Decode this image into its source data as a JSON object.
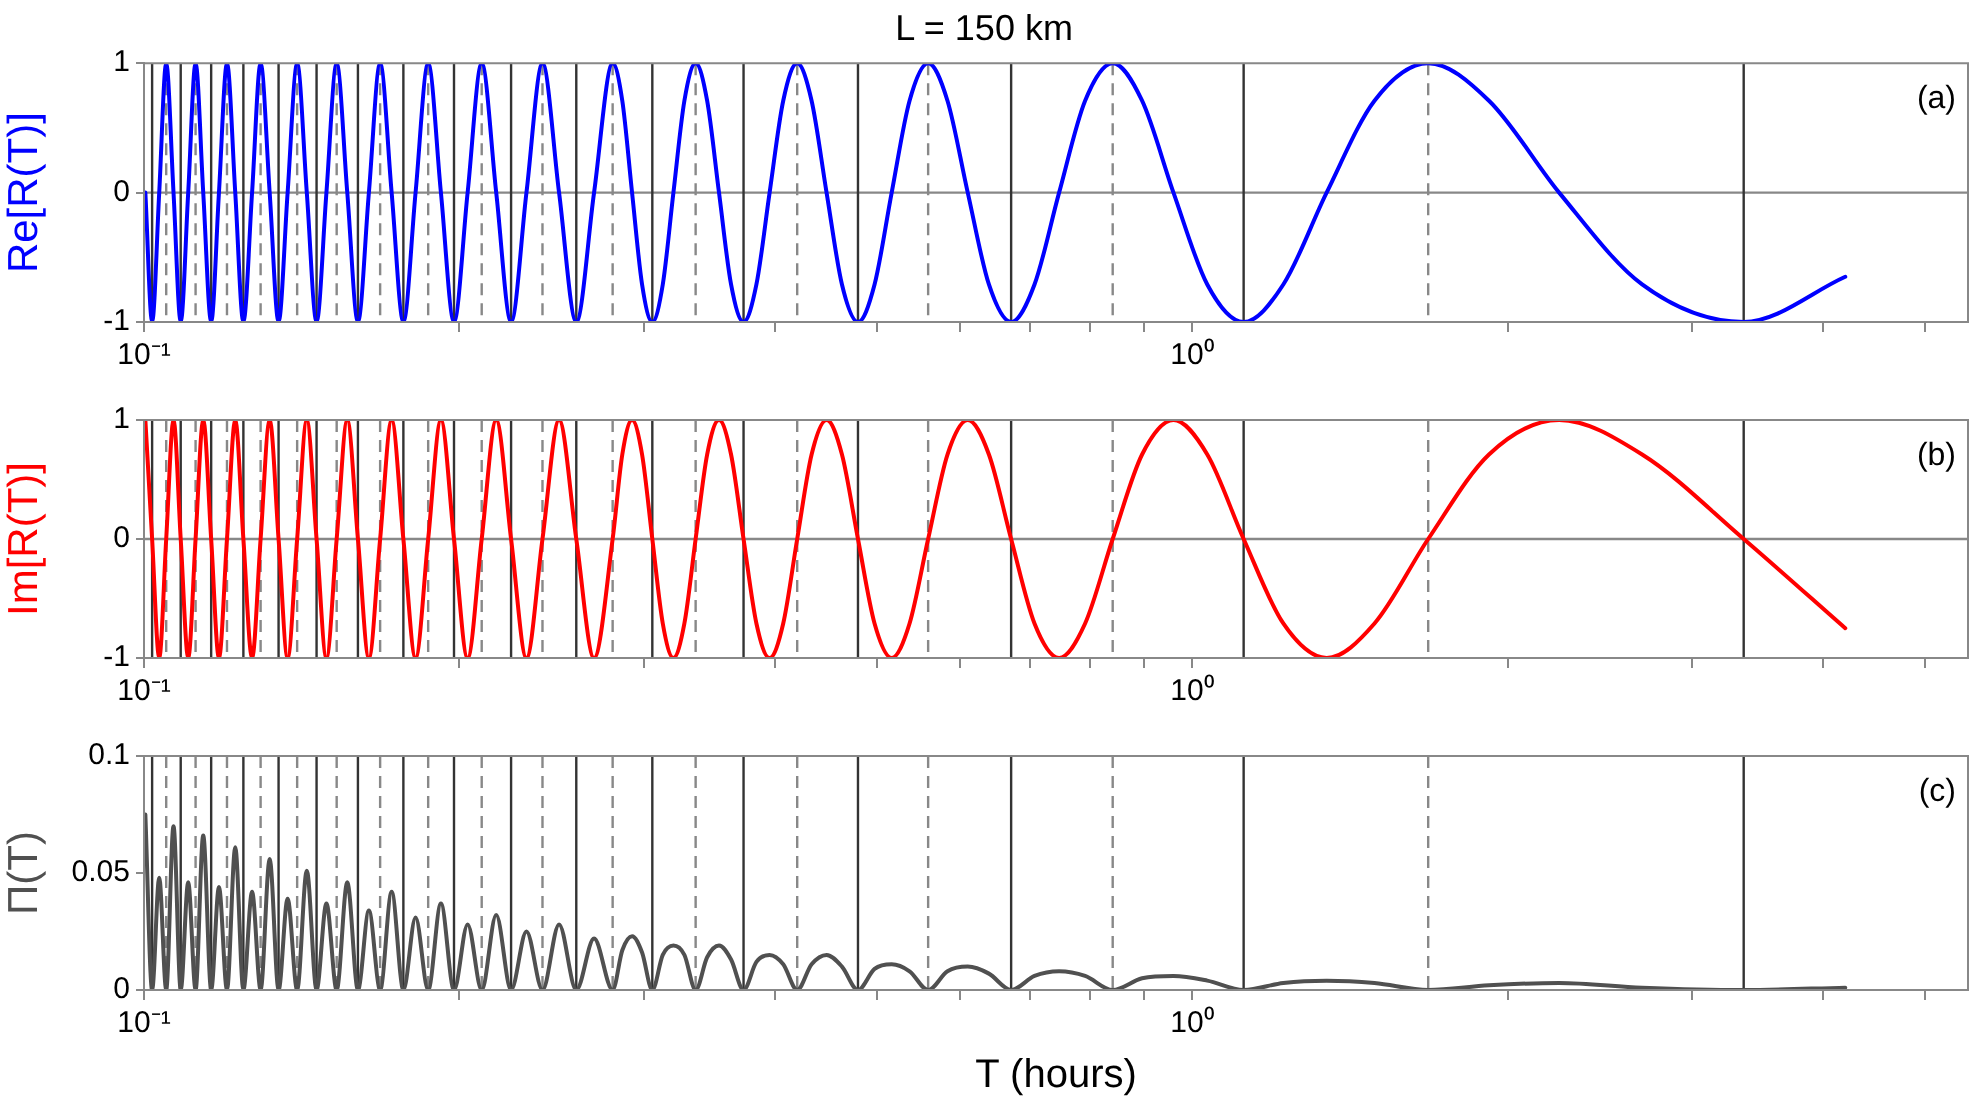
{
  "chart_data": [
    {
      "type": "line",
      "title": "L = 150 km",
      "ylabel": "Re[R(T)]",
      "log": "x",
      "marker": "none",
      "annotations": [
        "(a)"
      ],
      "xlim": [
        0.1,
        5.5
      ],
      "xticks": [
        {
          "value": 0.1,
          "label": "10⁻¹"
        },
        {
          "value": 0.2,
          "label": null
        },
        {
          "value": 0.3,
          "label": null
        },
        {
          "value": 0.4,
          "label": null
        },
        {
          "value": 0.5,
          "label": null
        },
        {
          "value": 0.6,
          "label": null
        },
        {
          "value": 0.7,
          "label": null
        },
        {
          "value": 0.8,
          "label": null
        },
        {
          "value": 0.9,
          "label": null
        },
        {
          "value": 1,
          "label": "10⁰"
        },
        {
          "value": 2,
          "label": null
        },
        {
          "value": 3,
          "label": null
        },
        {
          "value": 4,
          "label": null
        },
        {
          "value": 5,
          "label": null
        }
      ],
      "ylim": [
        -1,
        1
      ],
      "yticks": [
        -1,
        0,
        1
      ],
      "x": [
        0.1003,
        0.1018,
        0.1034,
        0.105,
        0.1067,
        0.1084,
        0.1102,
        0.112,
        0.1139,
        0.1159,
        0.1179,
        0.12,
        0.1222,
        0.1244,
        0.1268,
        0.1292,
        0.1318,
        0.1344,
        0.1371,
        0.14,
        0.143,
        0.1461,
        0.1493,
        0.1527,
        0.1563,
        0.16,
        0.1639,
        0.168,
        0.1723,
        0.1768,
        0.1816,
        0.1867,
        0.192,
        0.1976,
        0.2036,
        0.21,
        0.2168,
        0.224,
        0.2317,
        0.24,
        0.2489,
        0.2585,
        0.2688,
        0.28,
        0.286,
        0.2922,
        0.2987,
        0.3055,
        0.3126,
        0.32,
        0.3278,
        0.336,
        0.3446,
        0.3537,
        0.3632,
        0.3733,
        0.384,
        0.3953,
        0.4073,
        0.42,
        0.4335,
        0.448,
        0.4634,
        0.48,
        0.4978,
        0.5169,
        0.5376,
        0.56,
        0.5843,
        0.6109,
        0.64,
        0.672,
        0.7074,
        0.7467,
        0.7906,
        0.84,
        0.896,
        0.96,
        1.034,
        1.12,
        1.222,
        1.344,
        1.493,
        1.68,
        1.92,
        2.24,
        2.688,
        3.36,
        4.2
      ],
      "series": [
        {
          "color": "#0000ff",
          "values": [
            0,
            -1,
            0,
            1,
            0,
            -1,
            0,
            1,
            0,
            -1,
            0,
            1,
            0,
            -1,
            0,
            1,
            0,
            -1,
            0,
            1,
            0,
            -1,
            0,
            1,
            0,
            -1,
            0,
            1,
            0,
            -1,
            0,
            1,
            0,
            -1,
            0,
            1,
            0,
            -1,
            0,
            1,
            0,
            -1,
            0,
            1,
            0.71,
            0,
            -0.71,
            -1,
            -0.71,
            0,
            0.71,
            1,
            0.71,
            0,
            -0.71,
            -1,
            -0.71,
            0,
            0.71,
            1,
            0.71,
            0,
            -0.71,
            -1,
            -0.71,
            0,
            0.71,
            1,
            0.71,
            0,
            -0.71,
            -1,
            -0.71,
            0,
            0.71,
            1,
            0.71,
            0,
            -0.71,
            -1,
            -0.71,
            0,
            0.71,
            1,
            0.71,
            0,
            -0.71,
            -1,
            -0.65
          ]
        }
      ],
      "ref_lines": [
        {
          "axis": "y",
          "value": 0,
          "color": "#888888",
          "line_style": "solid"
        },
        {
          "axis": "x",
          "value": 0.1018,
          "color": "#333333",
          "line_style": "solid"
        },
        {
          "axis": "x",
          "value": 0.1084,
          "color": "#333333",
          "line_style": "solid"
        },
        {
          "axis": "x",
          "value": 0.1159,
          "color": "#333333",
          "line_style": "solid"
        },
        {
          "axis": "x",
          "value": 0.1244,
          "color": "#333333",
          "line_style": "solid"
        },
        {
          "axis": "x",
          "value": 0.1344,
          "color": "#333333",
          "line_style": "solid"
        },
        {
          "axis": "x",
          "value": 0.1461,
          "color": "#333333",
          "line_style": "solid"
        },
        {
          "axis": "x",
          "value": 0.16,
          "color": "#333333",
          "line_style": "solid"
        },
        {
          "axis": "x",
          "value": 0.1768,
          "color": "#333333",
          "line_style": "solid"
        },
        {
          "axis": "x",
          "value": 0.1976,
          "color": "#333333",
          "line_style": "solid"
        },
        {
          "axis": "x",
          "value": 0.224,
          "color": "#333333",
          "line_style": "solid"
        },
        {
          "axis": "x",
          "value": 0.2585,
          "color": "#333333",
          "line_style": "solid"
        },
        {
          "axis": "x",
          "value": 0.3055,
          "color": "#333333",
          "line_style": "solid"
        },
        {
          "axis": "x",
          "value": 0.3733,
          "color": "#333333",
          "line_style": "solid"
        },
        {
          "axis": "x",
          "value": 0.48,
          "color": "#333333",
          "line_style": "solid"
        },
        {
          "axis": "x",
          "value": 0.672,
          "color": "#333333",
          "line_style": "solid"
        },
        {
          "axis": "x",
          "value": 1.12,
          "color": "#333333",
          "line_style": "solid"
        },
        {
          "axis": "x",
          "value": 3.36,
          "color": "#333333",
          "line_style": "solid"
        },
        {
          "axis": "x",
          "value": 0.105,
          "color": "#888888",
          "line_style": "dashed"
        },
        {
          "axis": "x",
          "value": 0.112,
          "color": "#888888",
          "line_style": "dashed"
        },
        {
          "axis": "x",
          "value": 0.12,
          "color": "#888888",
          "line_style": "dashed"
        },
        {
          "axis": "x",
          "value": 0.1292,
          "color": "#888888",
          "line_style": "dashed"
        },
        {
          "axis": "x",
          "value": 0.14,
          "color": "#888888",
          "line_style": "dashed"
        },
        {
          "axis": "x",
          "value": 0.1527,
          "color": "#888888",
          "line_style": "dashed"
        },
        {
          "axis": "x",
          "value": 0.168,
          "color": "#888888",
          "line_style": "dashed"
        },
        {
          "axis": "x",
          "value": 0.1867,
          "color": "#888888",
          "line_style": "dashed"
        },
        {
          "axis": "x",
          "value": 0.21,
          "color": "#888888",
          "line_style": "dashed"
        },
        {
          "axis": "x",
          "value": 0.24,
          "color": "#888888",
          "line_style": "dashed"
        },
        {
          "axis": "x",
          "value": 0.28,
          "color": "#888888",
          "line_style": "dashed"
        },
        {
          "axis": "x",
          "value": 0.336,
          "color": "#888888",
          "line_style": "dashed"
        },
        {
          "axis": "x",
          "value": 0.42,
          "color": "#888888",
          "line_style": "dashed"
        },
        {
          "axis": "x",
          "value": 0.56,
          "color": "#888888",
          "line_style": "dashed"
        },
        {
          "axis": "x",
          "value": 0.84,
          "color": "#888888",
          "line_style": "dashed"
        },
        {
          "axis": "x",
          "value": 1.68,
          "color": "#888888",
          "line_style": "dashed"
        }
      ]
    },
    {
      "type": "line",
      "ylabel": "Im[R(T)]",
      "log": "x",
      "marker": "none",
      "annotations": [
        "(b)"
      ],
      "xlim": [
        0.1,
        5.5
      ],
      "xticks": [
        {
          "value": 0.1,
          "label": "10⁻¹"
        },
        {
          "value": 0.2,
          "label": null
        },
        {
          "value": 0.3,
          "label": null
        },
        {
          "value": 0.4,
          "label": null
        },
        {
          "value": 0.5,
          "label": null
        },
        {
          "value": 0.6,
          "label": null
        },
        {
          "value": 0.7,
          "label": null
        },
        {
          "value": 0.8,
          "label": null
        },
        {
          "value": 0.9,
          "label": null
        },
        {
          "value": 1,
          "label": "10⁰"
        },
        {
          "value": 2,
          "label": null
        },
        {
          "value": 3,
          "label": null
        },
        {
          "value": 4,
          "label": null
        },
        {
          "value": 5,
          "label": null
        }
      ],
      "ylim": [
        -1,
        1
      ],
      "yticks": [
        -1,
        0,
        1
      ],
      "x": [
        0.1003,
        0.1018,
        0.1034,
        0.105,
        0.1067,
        0.1084,
        0.1102,
        0.112,
        0.1139,
        0.1159,
        0.1179,
        0.12,
        0.1222,
        0.1244,
        0.1268,
        0.1292,
        0.1318,
        0.1344,
        0.1371,
        0.14,
        0.143,
        0.1461,
        0.1493,
        0.1527,
        0.1563,
        0.16,
        0.1639,
        0.168,
        0.1723,
        0.1768,
        0.1816,
        0.1867,
        0.192,
        0.1976,
        0.2036,
        0.21,
        0.2168,
        0.224,
        0.2317,
        0.24,
        0.2489,
        0.2585,
        0.2688,
        0.28,
        0.286,
        0.2922,
        0.2987,
        0.3055,
        0.3126,
        0.32,
        0.3278,
        0.336,
        0.3446,
        0.3537,
        0.3632,
        0.3733,
        0.384,
        0.3953,
        0.4073,
        0.42,
        0.4335,
        0.448,
        0.4634,
        0.48,
        0.4978,
        0.5169,
        0.5376,
        0.56,
        0.5843,
        0.6109,
        0.64,
        0.672,
        0.7074,
        0.7467,
        0.7906,
        0.84,
        0.896,
        0.96,
        1.034,
        1.12,
        1.222,
        1.344,
        1.493,
        1.68,
        1.92,
        2.24,
        2.688,
        3.36,
        4.2
      ],
      "series": [
        {
          "color": "#ff0000",
          "values": [
            1,
            0,
            -1,
            0,
            1,
            0,
            -1,
            0,
            1,
            0,
            -1,
            0,
            1,
            0,
            -1,
            0,
            1,
            0,
            -1,
            0,
            1,
            0,
            -1,
            0,
            1,
            0,
            -1,
            0,
            1,
            0,
            -1,
            0,
            1,
            0,
            -1,
            0,
            1,
            0,
            -1,
            0,
            1,
            0,
            -1,
            0,
            0.71,
            1,
            0.71,
            0,
            -0.71,
            -1,
            -0.71,
            0,
            0.71,
            1,
            0.71,
            0,
            -0.71,
            -1,
            -0.71,
            0,
            0.71,
            1,
            0.71,
            0,
            -0.71,
            -1,
            -0.71,
            0,
            0.71,
            1,
            0.71,
            0,
            -0.71,
            -1,
            -0.71,
            0,
            0.71,
            1,
            0.71,
            0,
            -0.71,
            -1,
            -0.71,
            0,
            0.71,
            1,
            0.71,
            0,
            -0.75
          ]
        }
      ],
      "ref_lines": [
        {
          "axis": "y",
          "value": 0,
          "color": "#888888",
          "line_style": "solid"
        },
        {
          "axis": "x",
          "value": 0.1018,
          "color": "#333333",
          "line_style": "solid"
        },
        {
          "axis": "x",
          "value": 0.1084,
          "color": "#333333",
          "line_style": "solid"
        },
        {
          "axis": "x",
          "value": 0.1159,
          "color": "#333333",
          "line_style": "solid"
        },
        {
          "axis": "x",
          "value": 0.1244,
          "color": "#333333",
          "line_style": "solid"
        },
        {
          "axis": "x",
          "value": 0.1344,
          "color": "#333333",
          "line_style": "solid"
        },
        {
          "axis": "x",
          "value": 0.1461,
          "color": "#333333",
          "line_style": "solid"
        },
        {
          "axis": "x",
          "value": 0.16,
          "color": "#333333",
          "line_style": "solid"
        },
        {
          "axis": "x",
          "value": 0.1768,
          "color": "#333333",
          "line_style": "solid"
        },
        {
          "axis": "x",
          "value": 0.1976,
          "color": "#333333",
          "line_style": "solid"
        },
        {
          "axis": "x",
          "value": 0.224,
          "color": "#333333",
          "line_style": "solid"
        },
        {
          "axis": "x",
          "value": 0.2585,
          "color": "#333333",
          "line_style": "solid"
        },
        {
          "axis": "x",
          "value": 0.3055,
          "color": "#333333",
          "line_style": "solid"
        },
        {
          "axis": "x",
          "value": 0.3733,
          "color": "#333333",
          "line_style": "solid"
        },
        {
          "axis": "x",
          "value": 0.48,
          "color": "#333333",
          "line_style": "solid"
        },
        {
          "axis": "x",
          "value": 0.672,
          "color": "#333333",
          "line_style": "solid"
        },
        {
          "axis": "x",
          "value": 1.12,
          "color": "#333333",
          "line_style": "solid"
        },
        {
          "axis": "x",
          "value": 3.36,
          "color": "#333333",
          "line_style": "solid"
        },
        {
          "axis": "x",
          "value": 0.105,
          "color": "#888888",
          "line_style": "dashed"
        },
        {
          "axis": "x",
          "value": 0.112,
          "color": "#888888",
          "line_style": "dashed"
        },
        {
          "axis": "x",
          "value": 0.12,
          "color": "#888888",
          "line_style": "dashed"
        },
        {
          "axis": "x",
          "value": 0.1292,
          "color": "#888888",
          "line_style": "dashed"
        },
        {
          "axis": "x",
          "value": 0.14,
          "color": "#888888",
          "line_style": "dashed"
        },
        {
          "axis": "x",
          "value": 0.1527,
          "color": "#888888",
          "line_style": "dashed"
        },
        {
          "axis": "x",
          "value": 0.168,
          "color": "#888888",
          "line_style": "dashed"
        },
        {
          "axis": "x",
          "value": 0.1867,
          "color": "#888888",
          "line_style": "dashed"
        },
        {
          "axis": "x",
          "value": 0.21,
          "color": "#888888",
          "line_style": "dashed"
        },
        {
          "axis": "x",
          "value": 0.24,
          "color": "#888888",
          "line_style": "dashed"
        },
        {
          "axis": "x",
          "value": 0.28,
          "color": "#888888",
          "line_style": "dashed"
        },
        {
          "axis": "x",
          "value": 0.336,
          "color": "#888888",
          "line_style": "dashed"
        },
        {
          "axis": "x",
          "value": 0.42,
          "color": "#888888",
          "line_style": "dashed"
        },
        {
          "axis": "x",
          "value": 0.56,
          "color": "#888888",
          "line_style": "dashed"
        },
        {
          "axis": "x",
          "value": 0.84,
          "color": "#888888",
          "line_style": "dashed"
        },
        {
          "axis": "x",
          "value": 1.68,
          "color": "#888888",
          "line_style": "dashed"
        }
      ]
    },
    {
      "type": "line",
      "ylabel": "Π(T)",
      "xlabel": "T (hours)",
      "log": "x",
      "marker": "none",
      "annotations": [
        "(c)"
      ],
      "xlim": [
        0.1,
        5.5
      ],
      "xticks": [
        {
          "value": 0.1,
          "label": "10⁻¹"
        },
        {
          "value": 0.2,
          "label": null
        },
        {
          "value": 0.3,
          "label": null
        },
        {
          "value": 0.4,
          "label": null
        },
        {
          "value": 0.5,
          "label": null
        },
        {
          "value": 0.6,
          "label": null
        },
        {
          "value": 0.7,
          "label": null
        },
        {
          "value": 0.8,
          "label": null
        },
        {
          "value": 0.9,
          "label": null
        },
        {
          "value": 1,
          "label": "10⁰"
        },
        {
          "value": 2,
          "label": null
        },
        {
          "value": 3,
          "label": null
        },
        {
          "value": 4,
          "label": null
        },
        {
          "value": 5,
          "label": null
        }
      ],
      "ylim": [
        0,
        0.1
      ],
      "yticks": [
        0,
        0.05,
        0.1
      ],
      "x": [
        0.1003,
        0.1018,
        0.1034,
        0.105,
        0.1067,
        0.1084,
        0.1102,
        0.112,
        0.1139,
        0.1159,
        0.1179,
        0.12,
        0.1222,
        0.1244,
        0.1268,
        0.1292,
        0.1318,
        0.1344,
        0.1371,
        0.14,
        0.143,
        0.1461,
        0.1493,
        0.1527,
        0.1563,
        0.16,
        0.1639,
        0.168,
        0.1723,
        0.1768,
        0.1816,
        0.1867,
        0.192,
        0.1976,
        0.2036,
        0.21,
        0.2168,
        0.224,
        0.2317,
        0.24,
        0.2489,
        0.2585,
        0.2688,
        0.28,
        0.286,
        0.2922,
        0.2987,
        0.3055,
        0.3126,
        0.32,
        0.3278,
        0.336,
        0.3446,
        0.3537,
        0.3632,
        0.3733,
        0.384,
        0.3953,
        0.4073,
        0.42,
        0.4335,
        0.448,
        0.4634,
        0.48,
        0.4978,
        0.5169,
        0.5376,
        0.56,
        0.5843,
        0.6109,
        0.64,
        0.672,
        0.7074,
        0.7467,
        0.7906,
        0.84,
        0.896,
        0.96,
        1.034,
        1.12,
        1.222,
        1.344,
        1.493,
        1.68,
        1.92,
        2.24,
        2.688,
        3.36,
        4.2
      ],
      "series": [
        {
          "color": "#505050",
          "values": [
            0.075,
            0,
            0.048,
            0,
            0.07,
            0,
            0.046,
            0,
            0.066,
            0,
            0.044,
            0,
            0.061,
            0,
            0.042,
            0,
            0.056,
            0,
            0.039,
            0,
            0.051,
            0,
            0.037,
            0,
            0.046,
            0,
            0.034,
            0,
            0.042,
            0,
            0.031,
            0,
            0.037,
            0,
            0.028,
            0,
            0.032,
            0,
            0.025,
            0,
            0.028,
            0,
            0.022,
            0,
            0.017,
            0.023,
            0.016,
            0,
            0.015,
            0.019,
            0.015,
            0,
            0.014,
            0.019,
            0.013,
            0,
            0.012,
            0.015,
            0.011,
            0,
            0.011,
            0.015,
            0.01,
            0,
            0.009,
            0.011,
            0.008,
            0,
            0.008,
            0.01,
            0.007,
            0,
            0.006,
            0.008,
            0.006,
            0,
            0.005,
            0.006,
            0.004,
            0,
            0.003,
            0.004,
            0.003,
            0,
            0.002,
            0.003,
            0.001,
            0,
            0.001
          ]
        }
      ],
      "ref_lines": [
        {
          "axis": "x",
          "value": 0.1018,
          "color": "#333333",
          "line_style": "solid"
        },
        {
          "axis": "x",
          "value": 0.1084,
          "color": "#333333",
          "line_style": "solid"
        },
        {
          "axis": "x",
          "value": 0.1159,
          "color": "#333333",
          "line_style": "solid"
        },
        {
          "axis": "x",
          "value": 0.1244,
          "color": "#333333",
          "line_style": "solid"
        },
        {
          "axis": "x",
          "value": 0.1344,
          "color": "#333333",
          "line_style": "solid"
        },
        {
          "axis": "x",
          "value": 0.1461,
          "color": "#333333",
          "line_style": "solid"
        },
        {
          "axis": "x",
          "value": 0.16,
          "color": "#333333",
          "line_style": "solid"
        },
        {
          "axis": "x",
          "value": 0.1768,
          "color": "#333333",
          "line_style": "solid"
        },
        {
          "axis": "x",
          "value": 0.1976,
          "color": "#333333",
          "line_style": "solid"
        },
        {
          "axis": "x",
          "value": 0.224,
          "color": "#333333",
          "line_style": "solid"
        },
        {
          "axis": "x",
          "value": 0.2585,
          "color": "#333333",
          "line_style": "solid"
        },
        {
          "axis": "x",
          "value": 0.3055,
          "color": "#333333",
          "line_style": "solid"
        },
        {
          "axis": "x",
          "value": 0.3733,
          "color": "#333333",
          "line_style": "solid"
        },
        {
          "axis": "x",
          "value": 0.48,
          "color": "#333333",
          "line_style": "solid"
        },
        {
          "axis": "x",
          "value": 0.672,
          "color": "#333333",
          "line_style": "solid"
        },
        {
          "axis": "x",
          "value": 1.12,
          "color": "#333333",
          "line_style": "solid"
        },
        {
          "axis": "x",
          "value": 3.36,
          "color": "#333333",
          "line_style": "solid"
        },
        {
          "axis": "x",
          "value": 0.105,
          "color": "#888888",
          "line_style": "dashed"
        },
        {
          "axis": "x",
          "value": 0.112,
          "color": "#888888",
          "line_style": "dashed"
        },
        {
          "axis": "x",
          "value": 0.12,
          "color": "#888888",
          "line_style": "dashed"
        },
        {
          "axis": "x",
          "value": 0.1292,
          "color": "#888888",
          "line_style": "dashed"
        },
        {
          "axis": "x",
          "value": 0.14,
          "color": "#888888",
          "line_style": "dashed"
        },
        {
          "axis": "x",
          "value": 0.1527,
          "color": "#888888",
          "line_style": "dashed"
        },
        {
          "axis": "x",
          "value": 0.168,
          "color": "#888888",
          "line_style": "dashed"
        },
        {
          "axis": "x",
          "value": 0.1867,
          "color": "#888888",
          "line_style": "dashed"
        },
        {
          "axis": "x",
          "value": 0.21,
          "color": "#888888",
          "line_style": "dashed"
        },
        {
          "axis": "x",
          "value": 0.24,
          "color": "#888888",
          "line_style": "dashed"
        },
        {
          "axis": "x",
          "value": 0.28,
          "color": "#888888",
          "line_style": "dashed"
        },
        {
          "axis": "x",
          "value": 0.336,
          "color": "#888888",
          "line_style": "dashed"
        },
        {
          "axis": "x",
          "value": 0.42,
          "color": "#888888",
          "line_style": "dashed"
        },
        {
          "axis": "x",
          "value": 0.56,
          "color": "#888888",
          "line_style": "dashed"
        },
        {
          "axis": "x",
          "value": 0.84,
          "color": "#888888",
          "line_style": "dashed"
        },
        {
          "axis": "x",
          "value": 1.68,
          "color": "#888888",
          "line_style": "dashed"
        }
      ]
    }
  ]
}
